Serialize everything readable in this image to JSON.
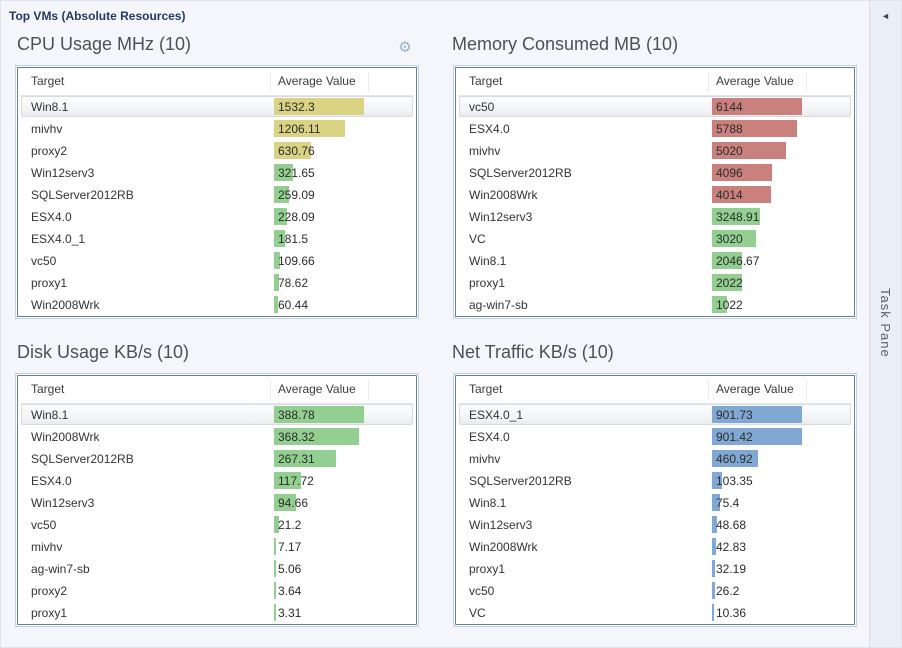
{
  "window_title": "Top VMs (Absolute Resources)",
  "task_pane": {
    "label": "Task Pane",
    "collapse_icon": "left-arrow"
  },
  "colors": {
    "bars": {
      "yellow": "#d9d383",
      "green": "#92cf90",
      "red": "#ca817d",
      "blue": "#81a7d3"
    },
    "title_navy": "#233864",
    "panel_title_gray": "#505050",
    "table_border": "#63829e",
    "page_bg": "#f4f6fc"
  },
  "panels": [
    {
      "title": "CPU Usage MHz (10)",
      "columns": [
        "Target",
        "Average Value"
      ],
      "rows": [
        {
          "target": "Win8.1",
          "value": "1532.3",
          "num": 1532.3,
          "bar": "yellow",
          "selected": true
        },
        {
          "target": "mivhv",
          "value": "1206.11",
          "num": 1206.11,
          "bar": "yellow",
          "selected": false
        },
        {
          "target": "proxy2",
          "value": "630.76",
          "num": 630.76,
          "bar": "yellow",
          "selected": false
        },
        {
          "target": "Win12serv3",
          "value": "321.65",
          "num": 321.65,
          "bar": "green",
          "selected": false
        },
        {
          "target": "SQLServer2012RB",
          "value": "259.09",
          "num": 259.09,
          "bar": "green",
          "selected": false
        },
        {
          "target": "ESX4.0",
          "value": "228.09",
          "num": 228.09,
          "bar": "green",
          "selected": false
        },
        {
          "target": "ESX4.0_1",
          "value": "181.5",
          "num": 181.5,
          "bar": "green",
          "selected": false
        },
        {
          "target": "vc50",
          "value": "109.66",
          "num": 109.66,
          "bar": "green",
          "selected": false
        },
        {
          "target": "proxy1",
          "value": "78.62",
          "num": 78.62,
          "bar": "green",
          "selected": false
        },
        {
          "target": "Win2008Wrk",
          "value": "60.44",
          "num": 60.44,
          "bar": "green",
          "selected": false
        }
      ]
    },
    {
      "title": "Memory Consumed MB (10)",
      "columns": [
        "Target",
        "Average Value"
      ],
      "rows": [
        {
          "target": "vc50",
          "value": "6144",
          "num": 6144,
          "bar": "red",
          "selected": true
        },
        {
          "target": "ESX4.0",
          "value": "5788",
          "num": 5788,
          "bar": "red",
          "selected": false
        },
        {
          "target": "mivhv",
          "value": "5020",
          "num": 5020,
          "bar": "red",
          "selected": false
        },
        {
          "target": "SQLServer2012RB",
          "value": "4096",
          "num": 4096,
          "bar": "red",
          "selected": false
        },
        {
          "target": "Win2008Wrk",
          "value": "4014",
          "num": 4014,
          "bar": "red",
          "selected": false
        },
        {
          "target": "Win12serv3",
          "value": "3248.91",
          "num": 3248.91,
          "bar": "green",
          "selected": false
        },
        {
          "target": "VC",
          "value": "3020",
          "num": 3020,
          "bar": "green",
          "selected": false
        },
        {
          "target": "Win8.1",
          "value": "2046.67",
          "num": 2046.67,
          "bar": "green",
          "selected": false
        },
        {
          "target": "proxy1",
          "value": "2022",
          "num": 2022,
          "bar": "green",
          "selected": false
        },
        {
          "target": "ag-win7-sb",
          "value": "1022",
          "num": 1022,
          "bar": "green",
          "selected": false
        }
      ]
    },
    {
      "title": "Disk Usage KB/s (10)",
      "columns": [
        "Target",
        "Average Value"
      ],
      "rows": [
        {
          "target": "Win8.1",
          "value": "388.78",
          "num": 388.78,
          "bar": "green",
          "selected": true
        },
        {
          "target": "Win2008Wrk",
          "value": "368.32",
          "num": 368.32,
          "bar": "green",
          "selected": false
        },
        {
          "target": "SQLServer2012RB",
          "value": "267.31",
          "num": 267.31,
          "bar": "green",
          "selected": false
        },
        {
          "target": "ESX4.0",
          "value": "117.72",
          "num": 117.72,
          "bar": "green",
          "selected": false
        },
        {
          "target": "Win12serv3",
          "value": "94.66",
          "num": 94.66,
          "bar": "green",
          "selected": false
        },
        {
          "target": "vc50",
          "value": "21.2",
          "num": 21.2,
          "bar": "green",
          "selected": false
        },
        {
          "target": "mivhv",
          "value": "7.17",
          "num": 7.17,
          "bar": "green",
          "selected": false
        },
        {
          "target": "ag-win7-sb",
          "value": "5.06",
          "num": 5.06,
          "bar": "green",
          "selected": false
        },
        {
          "target": "proxy2",
          "value": "3.64",
          "num": 3.64,
          "bar": "green",
          "selected": false
        },
        {
          "target": "proxy1",
          "value": "3.31",
          "num": 3.31,
          "bar": "green",
          "selected": false
        }
      ]
    },
    {
      "title": "Net Traffic KB/s (10)",
      "columns": [
        "Target",
        "Average Value"
      ],
      "rows": [
        {
          "target": "ESX4.0_1",
          "value": "901.73",
          "num": 901.73,
          "bar": "blue",
          "selected": true
        },
        {
          "target": "ESX4.0",
          "value": "901.42",
          "num": 901.42,
          "bar": "blue",
          "selected": false
        },
        {
          "target": "mivhv",
          "value": "460.92",
          "num": 460.92,
          "bar": "blue",
          "selected": false
        },
        {
          "target": "SQLServer2012RB",
          "value": "103.35",
          "num": 103.35,
          "bar": "blue",
          "selected": false
        },
        {
          "target": "Win8.1",
          "value": "75.4",
          "num": 75.4,
          "bar": "blue",
          "selected": false
        },
        {
          "target": "Win12serv3",
          "value": "48.68",
          "num": 48.68,
          "bar": "blue",
          "selected": false
        },
        {
          "target": "Win2008Wrk",
          "value": "42.83",
          "num": 42.83,
          "bar": "blue",
          "selected": false
        },
        {
          "target": "proxy1",
          "value": "32.19",
          "num": 32.19,
          "bar": "blue",
          "selected": false
        },
        {
          "target": "vc50",
          "value": "26.2",
          "num": 26.2,
          "bar": "blue",
          "selected": false
        },
        {
          "target": "VC",
          "value": "10.36",
          "num": 10.36,
          "bar": "blue",
          "selected": false
        }
      ]
    }
  ]
}
